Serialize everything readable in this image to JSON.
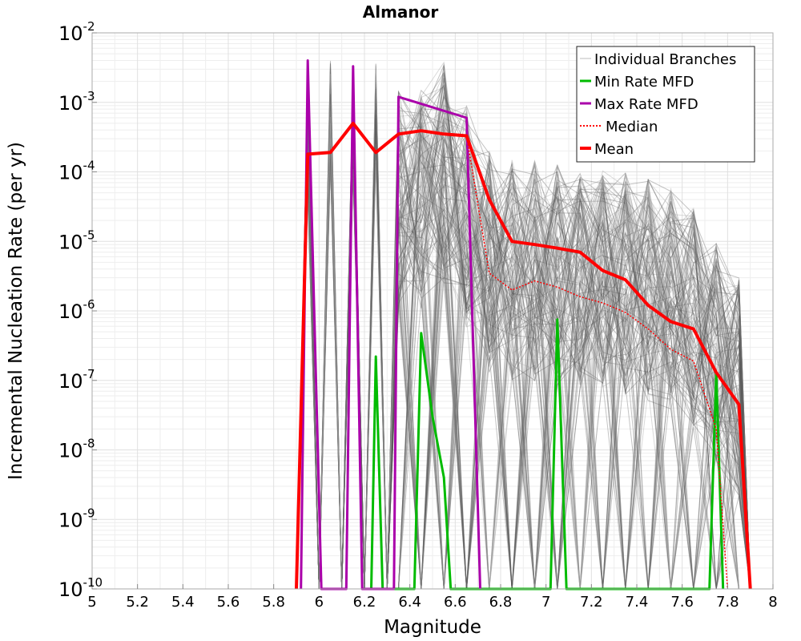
{
  "chart_data": {
    "type": "line",
    "title": "Almanor",
    "xlabel": "Magnitude",
    "ylabel": "Incremental Nucleation Rate (per yr)",
    "xlim": [
      5,
      8
    ],
    "ylim": [
      1e-10,
      0.01
    ],
    "y_scale": "log",
    "grid": true,
    "legend_position": "top-right",
    "x_ticks": [
      "5",
      "5.2",
      "5.4",
      "5.6",
      "5.8",
      "6",
      "6.2",
      "6.4",
      "6.6",
      "6.8",
      "7",
      "7.2",
      "7.4",
      "7.6",
      "7.8",
      "8"
    ],
    "y_ticks": [
      {
        "base": "10",
        "exp": "-10"
      },
      {
        "base": "10",
        "exp": "-9"
      },
      {
        "base": "10",
        "exp": "-8"
      },
      {
        "base": "10",
        "exp": "-7"
      },
      {
        "base": "10",
        "exp": "-6"
      },
      {
        "base": "10",
        "exp": "-5"
      },
      {
        "base": "10",
        "exp": "-4"
      },
      {
        "base": "10",
        "exp": "-3"
      },
      {
        "base": "10",
        "exp": "-2"
      }
    ],
    "series": [
      {
        "name": "Individual Branches",
        "color": "#555555",
        "style": "thin",
        "x": [
          5.9,
          5.95,
          6.0,
          6.05,
          6.1,
          6.15,
          6.2,
          6.25,
          6.3,
          6.35,
          6.45,
          6.55,
          6.65,
          6.75,
          6.85,
          6.95,
          7.05,
          7.15,
          7.25,
          7.35,
          7.45,
          7.55,
          7.65,
          7.75,
          7.85,
          7.9
        ],
        "y": [
          1e-10,
          0.0015,
          1e-10,
          0.004,
          1e-10,
          0.0025,
          1e-10,
          0.004,
          1e-10,
          0.0015,
          0.0015,
          0.004,
          0.0009,
          0.0002,
          0.00015,
          0.00015,
          0.00013,
          0.0001,
          0.00012,
          0.0001,
          8e-05,
          6e-05,
          3e-05,
          1e-05,
          3e-06,
          1e-10
        ]
      },
      {
        "name": "Min Rate MFD",
        "color": "#00bb00",
        "style": "solid",
        "x": [
          6.23,
          6.25,
          6.28,
          6.42,
          6.45,
          6.5,
          6.55,
          6.58,
          7.02,
          7.05,
          7.09,
          7.72,
          7.75,
          7.78
        ],
        "y": [
          1e-10,
          2.2e-07,
          1e-10,
          1e-10,
          4.8e-07,
          3e-08,
          4e-09,
          1e-10,
          1e-10,
          7.5e-07,
          1e-10,
          1e-10,
          1.3e-07,
          1e-10
        ]
      },
      {
        "name": "Max Rate MFD",
        "color": "#aa00aa",
        "style": "solid",
        "x": [
          5.92,
          5.95,
          6.01,
          6.12,
          6.15,
          6.19,
          6.33,
          6.35,
          6.65,
          6.71
        ],
        "y": [
          1e-10,
          0.004,
          1e-10,
          1e-10,
          0.0033,
          1e-10,
          1e-10,
          0.0012,
          0.0006,
          1e-10
        ]
      },
      {
        "name": "Median",
        "color": "#ff0000",
        "style": "dotted",
        "x": [
          5.9,
          5.95,
          6.05,
          6.15,
          6.25,
          6.35,
          6.45,
          6.55,
          6.65,
          6.75,
          6.85,
          6.95,
          7.05,
          7.15,
          7.25,
          7.35,
          7.45,
          7.55,
          7.65,
          7.75,
          7.8
        ],
        "y": [
          1e-10,
          0.00018,
          0.00019,
          0.0005,
          0.00019,
          0.00035,
          0.00039,
          0.00035,
          0.00033,
          3.5e-06,
          2e-06,
          2.7e-06,
          2.2e-06,
          1.6e-06,
          1.3e-06,
          9.5e-07,
          5.5e-07,
          2.8e-07,
          1.9e-07,
          2e-08,
          1e-10
        ]
      },
      {
        "name": "Mean",
        "color": "#ff0000",
        "style": "thick",
        "x": [
          5.9,
          5.95,
          6.05,
          6.15,
          6.25,
          6.35,
          6.45,
          6.55,
          6.65,
          6.75,
          6.85,
          6.95,
          7.05,
          7.15,
          7.25,
          7.35,
          7.45,
          7.55,
          7.65,
          7.75,
          7.85,
          7.9
        ],
        "y": [
          1e-10,
          0.00018,
          0.00019,
          0.0005,
          0.00019,
          0.00035,
          0.00039,
          0.00035,
          0.00033,
          4e-05,
          1e-05,
          9e-06,
          8e-06,
          7e-06,
          3.8e-06,
          2.8e-06,
          1.2e-06,
          7e-07,
          5.5e-07,
          1.3e-07,
          4.5e-08,
          1e-10
        ]
      }
    ]
  }
}
